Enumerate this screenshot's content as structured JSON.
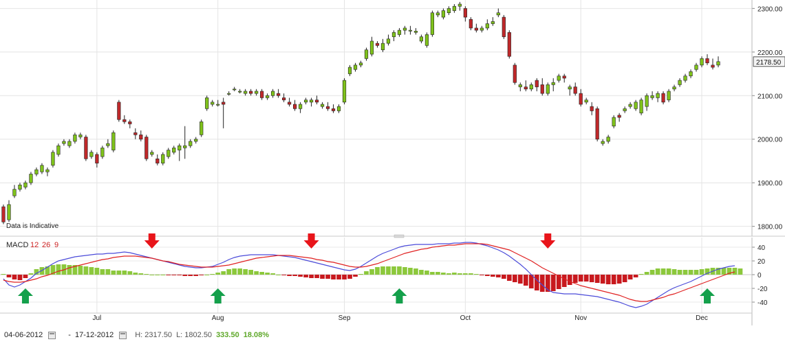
{
  "chart_data": [
    {
      "type": "candlestick",
      "annotation": "Data is Indicative",
      "ylim": [
        1790,
        2310
      ],
      "yticks": [
        1800,
        1900,
        2000,
        2100,
        2200,
        2300
      ],
      "ytick_labels": [
        "1800.00",
        "1900.00",
        "2000.00",
        "2100.00",
        "2200.00",
        "2300.00"
      ],
      "last_price_label": "2178.50",
      "grid": true,
      "colors": {
        "up": "#7fc21b",
        "down": "#c0282a"
      },
      "candles": [
        [
          1845,
          1850,
          1805,
          1810
        ],
        [
          1815,
          1860,
          1810,
          1850
        ],
        [
          1870,
          1895,
          1865,
          1885
        ],
        [
          1885,
          1900,
          1880,
          1895
        ],
        [
          1890,
          1905,
          1885,
          1900
        ],
        [
          1900,
          1925,
          1895,
          1920
        ],
        [
          1920,
          1935,
          1915,
          1930
        ],
        [
          1925,
          1945,
          1920,
          1940
        ],
        [
          1925,
          1935,
          1915,
          1930
        ],
        [
          1940,
          1975,
          1935,
          1970
        ],
        [
          1965,
          1990,
          1960,
          1985
        ],
        [
          1990,
          2000,
          1985,
          1995
        ],
        [
          1985,
          2000,
          1980,
          1995
        ],
        [
          1995,
          2015,
          1990,
          2010
        ],
        [
          2005,
          2015,
          2000,
          2010
        ],
        [
          2005,
          2010,
          1950,
          1955
        ],
        [
          1960,
          1975,
          1955,
          1970
        ],
        [
          1965,
          1970,
          1935,
          1945
        ],
        [
          1960,
          1985,
          1955,
          1980
        ],
        [
          1985,
          2000,
          1980,
          1990
        ],
        [
          1975,
          2020,
          1970,
          2015
        ],
        [
          2085,
          2090,
          2040,
          2045
        ],
        [
          2045,
          2055,
          2035,
          2040
        ],
        [
          2040,
          2045,
          2025,
          2035
        ],
        [
          2015,
          2025,
          2000,
          2010
        ],
        [
          2010,
          2020,
          1995,
          2000
        ],
        [
          2005,
          2010,
          1950,
          1955
        ],
        [
          1965,
          1975,
          1960,
          1970
        ],
        [
          1955,
          1965,
          1940,
          1945
        ],
        [
          1945,
          1970,
          1940,
          1965
        ],
        [
          1960,
          1980,
          1955,
          1975
        ],
        [
          1970,
          1985,
          1965,
          1980
        ],
        [
          1975,
          1990,
          1950,
          1985
        ],
        [
          1980,
          2030,
          1955,
          1985
        ],
        [
          1985,
          2000,
          1980,
          1995
        ],
        [
          1995,
          2005,
          1990,
          2000
        ],
        [
          2010,
          2045,
          2005,
          2040
        ],
        [
          2070,
          2100,
          2065,
          2095
        ],
        [
          2080,
          2090,
          2075,
          2085
        ],
        [
          2080,
          2090,
          2075,
          2080
        ],
        [
          2085,
          2095,
          2025,
          2080
        ],
        [
          2105,
          2110,
          2100,
          2105
        ],
        [
          2115,
          2120,
          2110,
          2115
        ],
        [
          2110,
          2115,
          2105,
          2110
        ],
        [
          2105,
          2115,
          2100,
          2110
        ],
        [
          2110,
          2115,
          2100,
          2105
        ],
        [
          2105,
          2115,
          2100,
          2110
        ],
        [
          2110,
          2115,
          2090,
          2095
        ],
        [
          2095,
          2105,
          2090,
          2100
        ],
        [
          2100,
          2115,
          2095,
          2110
        ],
        [
          2105,
          2115,
          2095,
          2100
        ],
        [
          2095,
          2105,
          2085,
          2090
        ],
        [
          2085,
          2095,
          2075,
          2080
        ],
        [
          2080,
          2090,
          2065,
          2070
        ],
        [
          2070,
          2085,
          2060,
          2080
        ],
        [
          2085,
          2095,
          2080,
          2090
        ],
        [
          2085,
          2095,
          2075,
          2090
        ],
        [
          2090,
          2100,
          2080,
          2085
        ],
        [
          2075,
          2085,
          2070,
          2080
        ],
        [
          2075,
          2085,
          2065,
          2070
        ],
        [
          2070,
          2080,
          2060,
          2065
        ],
        [
          2065,
          2080,
          2060,
          2075
        ],
        [
          2085,
          2140,
          2080,
          2135
        ],
        [
          2150,
          2170,
          2145,
          2165
        ],
        [
          2160,
          2175,
          2155,
          2170
        ],
        [
          2170,
          2180,
          2165,
          2175
        ],
        [
          2185,
          2210,
          2180,
          2205
        ],
        [
          2195,
          2235,
          2190,
          2225
        ],
        [
          2220,
          2225,
          2210,
          2215
        ],
        [
          2205,
          2230,
          2200,
          2220
        ],
        [
          2220,
          2240,
          2215,
          2230
        ],
        [
          2235,
          2250,
          2225,
          2245
        ],
        [
          2240,
          2255,
          2235,
          2250
        ],
        [
          2250,
          2260,
          2240,
          2255
        ],
        [
          2250,
          2260,
          2240,
          2250
        ],
        [
          2245,
          2255,
          2240,
          2248
        ],
        [
          2225,
          2240,
          2220,
          2235
        ],
        [
          2215,
          2245,
          2210,
          2240
        ],
        [
          2240,
          2295,
          2235,
          2290
        ],
        [
          2285,
          2295,
          2280,
          2290
        ],
        [
          2280,
          2300,
          2275,
          2295
        ],
        [
          2290,
          2305,
          2285,
          2300
        ],
        [
          2295,
          2310,
          2290,
          2305
        ],
        [
          2305,
          2315,
          2295,
          2310
        ],
        [
          2300,
          2305,
          2270,
          2280
        ],
        [
          2275,
          2280,
          2250,
          2255
        ],
        [
          2255,
          2265,
          2245,
          2250
        ],
        [
          2250,
          2260,
          2245,
          2255
        ],
        [
          2255,
          2275,
          2250,
          2265
        ],
        [
          2265,
          2280,
          2260,
          2270
        ],
        [
          2285,
          2300,
          2280,
          2290
        ],
        [
          2280,
          2285,
          2230,
          2235
        ],
        [
          2245,
          2250,
          2185,
          2190
        ],
        [
          2170,
          2175,
          2125,
          2130
        ],
        [
          2120,
          2130,
          2110,
          2125
        ],
        [
          2120,
          2135,
          2110,
          2115
        ],
        [
          2115,
          2130,
          2110,
          2125
        ],
        [
          2135,
          2140,
          2110,
          2120
        ],
        [
          2125,
          2140,
          2100,
          2105
        ],
        [
          2105,
          2130,
          2100,
          2125
        ],
        [
          2125,
          2140,
          2110,
          2130
        ],
        [
          2135,
          2150,
          2130,
          2145
        ],
        [
          2145,
          2150,
          2130,
          2140
        ],
        [
          2115,
          2125,
          2100,
          2120
        ],
        [
          2120,
          2130,
          2100,
          2105
        ],
        [
          2105,
          2115,
          2075,
          2080
        ],
        [
          2085,
          2095,
          2080,
          2090
        ],
        [
          2075,
          2085,
          2055,
          2065
        ],
        [
          2070,
          2075,
          1995,
          2000
        ],
        [
          1990,
          2000,
          1985,
          1995
        ],
        [
          1995,
          2010,
          1990,
          2005
        ],
        [
          2030,
          2055,
          2025,
          2050
        ],
        [
          2055,
          2060,
          2040,
          2050
        ],
        [
          2065,
          2075,
          2060,
          2070
        ],
        [
          2075,
          2085,
          2070,
          2080
        ],
        [
          2070,
          2090,
          2065,
          2085
        ],
        [
          2060,
          2095,
          2055,
          2090
        ],
        [
          2075,
          2105,
          2065,
          2100
        ],
        [
          2095,
          2110,
          2090,
          2100
        ],
        [
          2095,
          2110,
          2085,
          2105
        ],
        [
          2105,
          2110,
          2080,
          2085
        ],
        [
          2090,
          2115,
          2085,
          2110
        ],
        [
          2115,
          2125,
          2110,
          2120
        ],
        [
          2125,
          2140,
          2120,
          2135
        ],
        [
          2135,
          2150,
          2130,
          2145
        ],
        [
          2145,
          2160,
          2140,
          2155
        ],
        [
          2160,
          2175,
          2155,
          2170
        ],
        [
          2170,
          2190,
          2165,
          2185
        ],
        [
          2185,
          2195,
          2170,
          2175
        ],
        [
          2170,
          2185,
          2160,
          2165
        ],
        [
          2170,
          2190,
          2165,
          2178
        ]
      ],
      "x_labels": [
        "Jul",
        "Aug",
        "Sep",
        "Oct",
        "Nov",
        "Dec"
      ],
      "x_label_days": [
        17,
        39,
        62,
        84,
        105,
        127
      ]
    },
    {
      "type": "line",
      "title": "MACD",
      "parameters": [
        "12",
        "26",
        "9"
      ],
      "ylim": [
        -52,
        52
      ],
      "yticks": [
        40,
        20,
        0,
        -20,
        -40
      ],
      "ytick_labels": [
        "40",
        "20",
        "0",
        "-20",
        "-40"
      ],
      "series": [
        {
          "color": "#4a4ad9",
          "values": [
            -6,
            -15,
            -18,
            -15,
            -10,
            -5,
            2,
            6,
            11,
            16,
            20,
            22,
            24,
            26,
            27,
            28,
            29,
            30,
            30,
            31,
            31,
            32,
            33,
            32,
            30,
            28,
            26,
            24,
            22,
            20,
            18,
            16,
            14,
            12,
            11,
            10,
            10,
            11,
            12,
            15,
            18,
            22,
            25,
            27,
            28,
            29,
            29,
            29,
            29,
            29,
            28,
            27,
            26,
            25,
            23,
            21,
            19,
            17,
            15,
            13,
            11,
            9,
            7,
            6,
            8,
            12,
            17,
            22,
            27,
            31,
            34,
            37,
            40,
            42,
            43,
            44,
            44,
            44,
            44,
            45,
            45,
            45,
            46,
            46,
            47,
            47,
            46,
            44,
            42,
            39,
            36,
            32,
            27,
            21,
            15,
            8,
            0,
            -8,
            -15,
            -22,
            -26,
            -27,
            -28,
            -28,
            -28,
            -29,
            -30,
            -31,
            -32,
            -34,
            -36,
            -38,
            -40,
            -43,
            -46,
            -48,
            -46,
            -43,
            -38,
            -33,
            -28,
            -23,
            -19,
            -16,
            -13,
            -10,
            -6,
            -2,
            2,
            5,
            8,
            10,
            12,
            13
          ]
        },
        {
          "color": "#e02020",
          "values": [
            -8,
            -10,
            -11,
            -11,
            -10,
            -8,
            -6,
            -3,
            -1,
            2,
            5,
            7,
            10,
            12,
            14,
            16,
            18,
            20,
            22,
            23,
            25,
            26,
            27,
            27,
            27,
            26,
            25,
            24,
            22,
            20,
            19,
            17,
            15,
            14,
            13,
            12,
            11,
            11,
            11,
            12,
            13,
            14,
            16,
            18,
            20,
            22,
            24,
            25,
            26,
            27,
            28,
            28,
            28,
            27,
            26,
            25,
            24,
            22,
            21,
            19,
            18,
            16,
            14,
            12,
            11,
            11,
            12,
            14,
            16,
            19,
            22,
            25,
            28,
            31,
            33,
            35,
            37,
            38,
            40,
            41,
            42,
            43,
            43,
            44,
            45,
            45,
            45,
            45,
            44,
            42,
            40,
            38,
            36,
            32,
            28,
            24,
            20,
            15,
            10,
            6,
            2,
            -2,
            -6,
            -10,
            -13,
            -16,
            -18,
            -20,
            -22,
            -24,
            -26,
            -28,
            -30,
            -33,
            -36,
            -38,
            -39,
            -39,
            -37,
            -35,
            -33,
            -30,
            -28,
            -25,
            -22,
            -19,
            -16,
            -13,
            -10,
            -7,
            -4,
            -1,
            2,
            4
          ]
        }
      ],
      "histogram": [
        1,
        -4,
        -7,
        -8,
        -5,
        2,
        8,
        11,
        12,
        14,
        15,
        15,
        14,
        14,
        13,
        12,
        11,
        10,
        8,
        8,
        6,
        6,
        6,
        5,
        3,
        2,
        1,
        0,
        0,
        0,
        -1,
        -1,
        -1,
        -2,
        -2,
        -2,
        -1,
        0,
        1,
        3,
        5,
        8,
        9,
        9,
        8,
        7,
        5,
        4,
        3,
        2,
        0,
        -1,
        -2,
        -2,
        -3,
        -4,
        -5,
        -5,
        -6,
        -6,
        -7,
        -7,
        -7,
        -6,
        -3,
        1,
        5,
        8,
        11,
        12,
        12,
        12,
        12,
        11,
        10,
        9,
        7,
        6,
        4,
        4,
        3,
        2,
        3,
        2,
        2,
        2,
        1,
        -1,
        -2,
        -3,
        -4,
        -6,
        -9,
        -11,
        -13,
        -16,
        -20,
        -23,
        -25,
        -25,
        -24,
        -21,
        -18,
        -15,
        -12,
        -10,
        -10,
        -11,
        -12,
        -13,
        -14,
        -14,
        -13,
        -11,
        -7,
        -4,
        1,
        4,
        7,
        9,
        9,
        9,
        8,
        7,
        7,
        7,
        7,
        8,
        9,
        10,
        10,
        10,
        10,
        10,
        9
      ],
      "hist_colors": {
        "positive": "#8cc83c",
        "negative": "#c8191e"
      },
      "signals": [
        {
          "type": "sell",
          "day": 27,
          "color": "#e8141a"
        },
        {
          "type": "sell",
          "day": 56,
          "color": "#e8141a"
        },
        {
          "type": "sell",
          "day": 99,
          "color": "#e8141a"
        },
        {
          "type": "buy",
          "day": 4,
          "color": "#14a04b"
        },
        {
          "type": "buy",
          "day": 39,
          "color": "#14a04b"
        },
        {
          "type": "buy",
          "day": 72,
          "color": "#14a04b"
        },
        {
          "type": "buy",
          "day": 128,
          "color": "#14a04b"
        }
      ]
    }
  ],
  "footer": {
    "start_date": "04-06-2012",
    "dash": "-",
    "end_date": "17-12-2012",
    "high": "H: 2317.50",
    "low": "L: 1802.50",
    "change": "333.50",
    "change_pct": "18.08%"
  }
}
